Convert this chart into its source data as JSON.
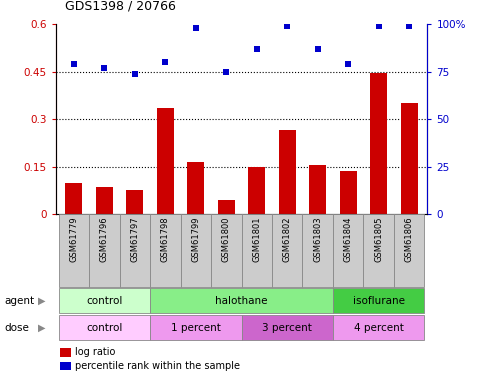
{
  "title": "GDS1398 / 20766",
  "samples": [
    "GSM61779",
    "GSM61796",
    "GSM61797",
    "GSM61798",
    "GSM61799",
    "GSM61800",
    "GSM61801",
    "GSM61802",
    "GSM61803",
    "GSM61804",
    "GSM61805",
    "GSM61806"
  ],
  "log_ratio": [
    0.1,
    0.085,
    0.075,
    0.335,
    0.165,
    0.045,
    0.148,
    0.265,
    0.155,
    0.135,
    0.445,
    0.35
  ],
  "pct_rank": [
    79,
    77,
    74,
    80,
    98,
    75,
    87,
    99,
    87,
    79,
    99,
    99
  ],
  "bar_color": "#cc0000",
  "dot_color": "#0000cc",
  "ylim_left": [
    0,
    0.6
  ],
  "ylim_right": [
    0,
    100
  ],
  "yticks_left": [
    0,
    0.15,
    0.3,
    0.45,
    0.6
  ],
  "yticks_right": [
    0,
    25,
    50,
    75,
    100
  ],
  "ytick_labels_left": [
    "0",
    "0.15",
    "0.3",
    "0.45",
    "0.6"
  ],
  "ytick_labels_right": [
    "0",
    "25",
    "50",
    "75",
    "100%"
  ],
  "hlines": [
    0.15,
    0.3,
    0.45
  ],
  "agent_groups": [
    {
      "label": "control",
      "start": 0,
      "end": 3,
      "color": "#ccffcc"
    },
    {
      "label": "halothane",
      "start": 3,
      "end": 9,
      "color": "#88ee88"
    },
    {
      "label": "isoflurane",
      "start": 9,
      "end": 12,
      "color": "#44cc44"
    }
  ],
  "dose_groups": [
    {
      "label": "control",
      "start": 0,
      "end": 3,
      "color": "#ffccff"
    },
    {
      "label": "1 percent",
      "start": 3,
      "end": 6,
      "color": "#ee99ee"
    },
    {
      "label": "3 percent",
      "start": 6,
      "end": 9,
      "color": "#cc66cc"
    },
    {
      "label": "4 percent",
      "start": 9,
      "end": 12,
      "color": "#ee99ee"
    }
  ],
  "sample_box_color": "#cccccc",
  "sample_box_edge": "#888888",
  "left_axis_color": "#cc0000",
  "right_axis_color": "#0000cc",
  "agent_label": "agent",
  "dose_label": "dose",
  "legend_bar_label": "log ratio",
  "legend_dot_label": "percentile rank within the sample",
  "background": "white"
}
